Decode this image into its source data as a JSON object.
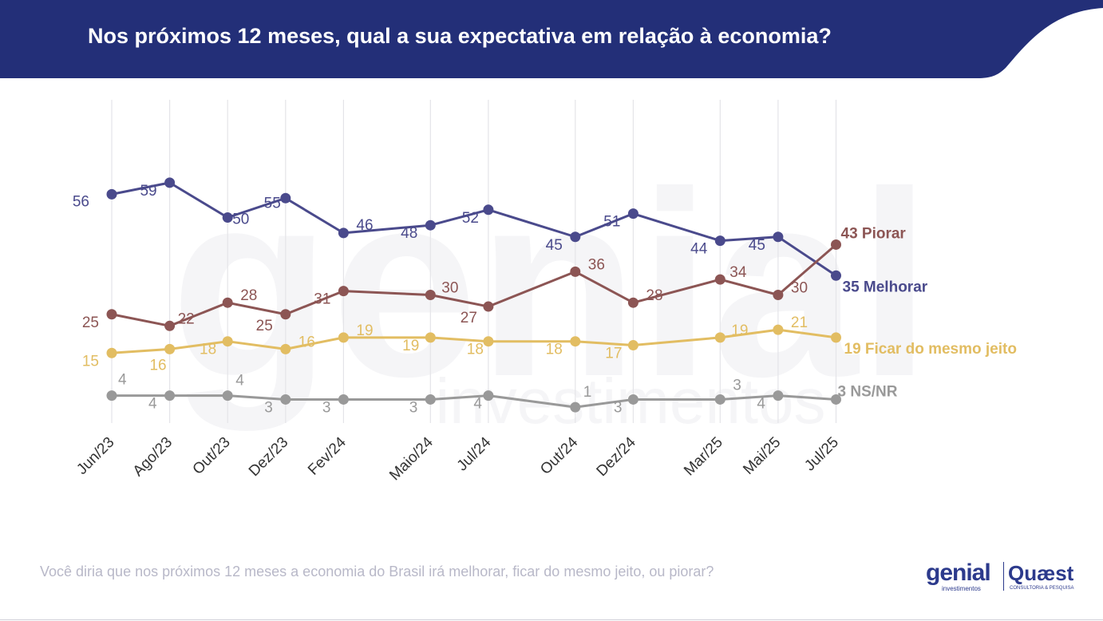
{
  "header": {
    "title": "Nos próximos 12 meses, qual a sua expectativa em relação à economia?",
    "bg_color": "#232f78"
  },
  "footnote": "Você diria que nos próximos 12 meses a economia do Brasil irá melhorar, ficar do mesmo jeito, ou piorar?",
  "watermark": {
    "main": "genial",
    "sub": "investimentos"
  },
  "logos": {
    "genial": {
      "word": "genial",
      "sub": "investimentos",
      "icon": "genial-logo-icon"
    },
    "quaest": {
      "word": "Quæst",
      "sub": "CONSULTORIA & PESQUISA",
      "icon": "quaest-logo-icon"
    }
  },
  "chart_data": {
    "type": "line",
    "title": "Nos próximos 12 meses, qual a sua expectativa em relação à economia?",
    "x": [
      "Jun/23",
      "Ago/23",
      "Out/23",
      "Dez/23",
      "Fev/24",
      "Maio/24",
      "Jul/24",
      "Out/24",
      "Dez/24",
      "Mar/25",
      "Mai/25",
      "Jul/25"
    ],
    "x_months": [
      0,
      2,
      4,
      6,
      8,
      11,
      13,
      16,
      18,
      21,
      23,
      25
    ],
    "ylim": [
      0,
      70
    ],
    "grid": "vertical",
    "series": [
      {
        "name": "Melhorar",
        "color": "#4a4a8c",
        "label": "35 Melhorar",
        "values": [
          56,
          59,
          50,
          55,
          46,
          48,
          52,
          45,
          51,
          44,
          45,
          35
        ]
      },
      {
        "name": "Piorar",
        "color": "#8c5554",
        "label": "43 Piorar",
        "values": [
          25,
          22,
          28,
          25,
          31,
          30,
          27,
          36,
          28,
          34,
          30,
          43
        ]
      },
      {
        "name": "Ficar do mesmo jeito",
        "color": "#e2bd62",
        "label": "19 Ficar do mesmo jeito",
        "values": [
          15,
          16,
          18,
          16,
          19,
          19,
          18,
          18,
          17,
          19,
          21,
          19
        ]
      },
      {
        "name": "NS/NR",
        "color": "#999999",
        "label": "3 NS/NR",
        "values": [
          4,
          4,
          4,
          3,
          3,
          3,
          4,
          1,
          3,
          3,
          4,
          3
        ]
      }
    ]
  }
}
